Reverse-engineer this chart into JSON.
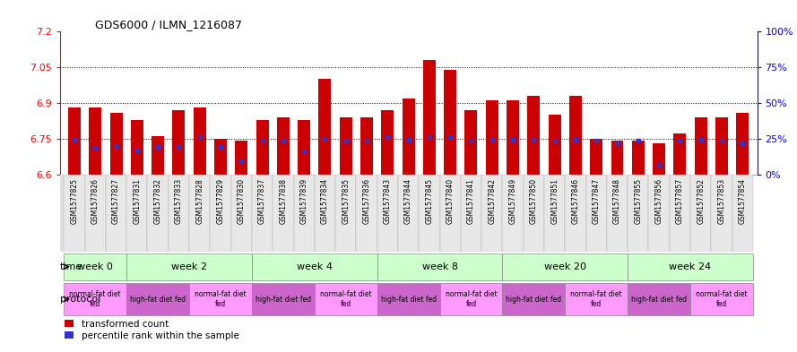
{
  "title": "GDS6000 / ILMN_1216087",
  "samples": [
    "GSM1577825",
    "GSM1577826",
    "GSM1577827",
    "GSM1577831",
    "GSM1577832",
    "GSM1577833",
    "GSM1577828",
    "GSM1577829",
    "GSM1577830",
    "GSM1577837",
    "GSM1577838",
    "GSM1577839",
    "GSM1577834",
    "GSM1577835",
    "GSM1577836",
    "GSM1577843",
    "GSM1577844",
    "GSM1577845",
    "GSM1577840",
    "GSM1577841",
    "GSM1577842",
    "GSM1577849",
    "GSM1577850",
    "GSM1577851",
    "GSM1577846",
    "GSM1577847",
    "GSM1577848",
    "GSM1577855",
    "GSM1577856",
    "GSM1577857",
    "GSM1577852",
    "GSM1577853",
    "GSM1577854"
  ],
  "bar_values": [
    6.88,
    6.88,
    6.86,
    6.83,
    6.76,
    6.87,
    6.88,
    6.75,
    6.74,
    6.83,
    6.84,
    6.83,
    7.0,
    6.84,
    6.84,
    6.87,
    6.92,
    7.08,
    7.04,
    6.87,
    6.91,
    6.91,
    6.93,
    6.85,
    6.93,
    6.75,
    6.74,
    6.74,
    6.73,
    6.77,
    6.84,
    6.84,
    6.86
  ],
  "percentile_values": [
    6.745,
    6.71,
    6.72,
    6.7,
    6.715,
    6.715,
    6.755,
    6.715,
    6.655,
    6.74,
    6.74,
    6.695,
    6.75,
    6.74,
    6.74,
    6.755,
    6.745,
    6.755,
    6.755,
    6.74,
    6.745,
    6.745,
    6.745,
    6.74,
    6.745,
    6.74,
    6.73,
    6.74,
    6.64,
    6.74,
    6.745,
    6.74,
    6.73
  ],
  "ymin": 6.6,
  "ymax": 7.2,
  "yticks": [
    6.6,
    6.75,
    6.9,
    7.05,
    7.2
  ],
  "y2ticks_labels": [
    "0%",
    "25%",
    "50%",
    "75%",
    "100%"
  ],
  "y2ticks_vals": [
    6.6,
    6.75,
    6.9,
    7.05,
    7.2
  ],
  "gridlines": [
    6.75,
    6.9,
    7.05
  ],
  "bar_color": "#cc0000",
  "marker_color": "#3333cc",
  "time_groups": [
    {
      "label": "week 0",
      "start": 0,
      "end": 3
    },
    {
      "label": "week 2",
      "start": 3,
      "end": 9
    },
    {
      "label": "week 4",
      "start": 9,
      "end": 15
    },
    {
      "label": "week 8",
      "start": 15,
      "end": 21
    },
    {
      "label": "week 20",
      "start": 21,
      "end": 27
    },
    {
      "label": "week 24",
      "start": 27,
      "end": 33
    }
  ],
  "protocol_groups": [
    {
      "label": "normal-fat diet\nfed",
      "start": 0,
      "end": 3,
      "color": "#ff99ff"
    },
    {
      "label": "high-fat diet fed",
      "start": 3,
      "end": 6,
      "color": "#cc66cc"
    },
    {
      "label": "normal-fat diet\nfed",
      "start": 6,
      "end": 9,
      "color": "#ff99ff"
    },
    {
      "label": "high-fat diet fed",
      "start": 9,
      "end": 12,
      "color": "#cc66cc"
    },
    {
      "label": "normal-fat diet\nfed",
      "start": 12,
      "end": 15,
      "color": "#ff99ff"
    },
    {
      "label": "high-fat diet fed",
      "start": 15,
      "end": 18,
      "color": "#cc66cc"
    },
    {
      "label": "normal-fat diet\nfed",
      "start": 18,
      "end": 21,
      "color": "#ff99ff"
    },
    {
      "label": "high-fat diet fed",
      "start": 21,
      "end": 24,
      "color": "#cc66cc"
    },
    {
      "label": "normal-fat diet\nfed",
      "start": 24,
      "end": 27,
      "color": "#ff99ff"
    },
    {
      "label": "high-fat diet fed",
      "start": 27,
      "end": 30,
      "color": "#cc66cc"
    },
    {
      "label": "normal-fat diet\nfed",
      "start": 30,
      "end": 33,
      "color": "#ff99ff"
    }
  ],
  "time_bg_color": "#ccffcc",
  "bg_color": "#ffffff",
  "legend_items": [
    {
      "label": "transformed count",
      "color": "#cc0000"
    },
    {
      "label": "percentile rank within the sample",
      "color": "#3333cc"
    }
  ]
}
